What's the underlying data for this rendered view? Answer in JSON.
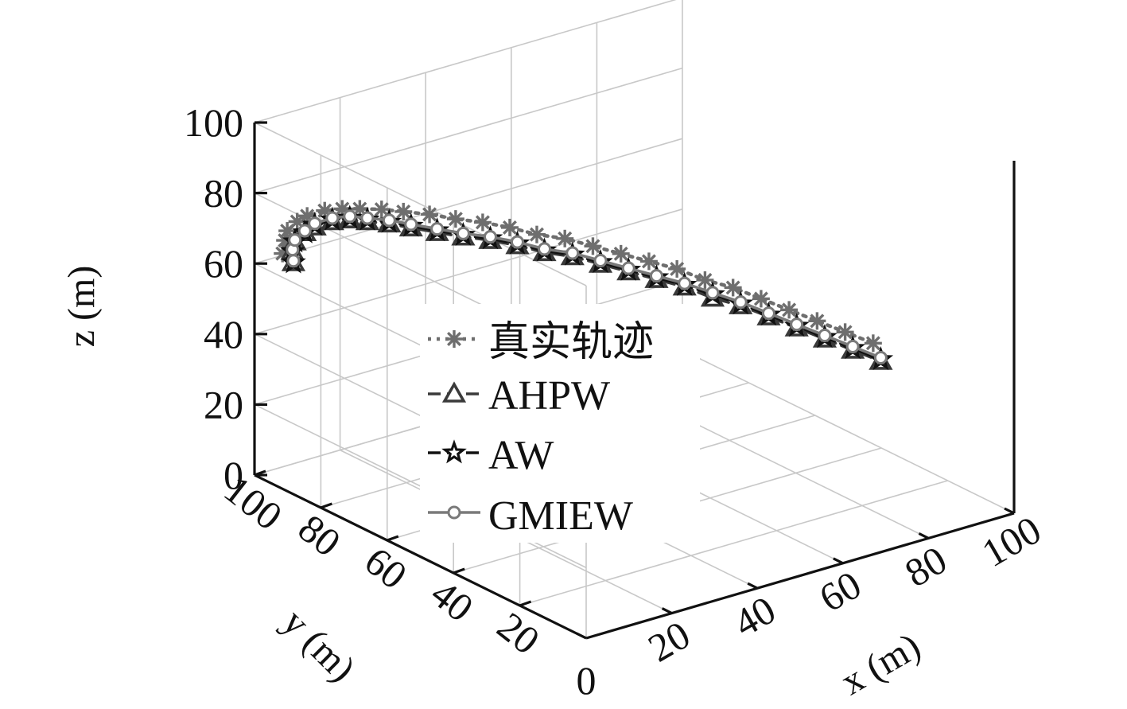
{
  "chart_data": {
    "type": "line3d",
    "view": "isometric-3d",
    "grid": true,
    "legend_position": "center",
    "xlabel": "x (m)",
    "ylabel": "y (m)",
    "zlabel": "z (m)",
    "xlim": [
      0,
      100
    ],
    "ylim": [
      0,
      100
    ],
    "zlim": [
      0,
      100
    ],
    "x_ticks": [
      "0",
      "20",
      "40",
      "60",
      "80",
      "100"
    ],
    "y_ticks": [
      "20",
      "40",
      "60",
      "80",
      "100"
    ],
    "z_ticks": [
      "0",
      "20",
      "40",
      "60",
      "80",
      "100"
    ],
    "series": [
      {
        "name": "真实轨迹",
        "color": "#6e6e6e",
        "line_style": "dotted",
        "marker": "asterisk",
        "points": [
          [
            5,
            98,
            62
          ],
          [
            4,
            96,
            67
          ],
          [
            3,
            94,
            71
          ],
          [
            3,
            91,
            75
          ],
          [
            3,
            88,
            78
          ],
          [
            4,
            84,
            81
          ],
          [
            5,
            80,
            83
          ],
          [
            6,
            76,
            84.5
          ],
          [
            8,
            72,
            85.5
          ],
          [
            10,
            68,
            86
          ],
          [
            13,
            64,
            86
          ],
          [
            16,
            60,
            85.5
          ],
          [
            20,
            57,
            84.5
          ],
          [
            24,
            54,
            83
          ],
          [
            28,
            51,
            81
          ],
          [
            33,
            49,
            79
          ],
          [
            38,
            47,
            76
          ],
          [
            43,
            45,
            73
          ],
          [
            48,
            43,
            70
          ],
          [
            53,
            41,
            67
          ],
          [
            58,
            39,
            63
          ],
          [
            63,
            37,
            60
          ],
          [
            68,
            35,
            56
          ],
          [
            73,
            33,
            52
          ],
          [
            78,
            31,
            48
          ],
          [
            83,
            29,
            44
          ],
          [
            88,
            27,
            40
          ]
        ]
      },
      {
        "name": "AHPW",
        "color": "#3a3a3a",
        "line_style": "dashed",
        "marker": "triangle",
        "points": [
          [
            6,
            96,
            60
          ],
          [
            5,
            95,
            64
          ],
          [
            4,
            93,
            68
          ],
          [
            4,
            90,
            72
          ],
          [
            4,
            87,
            75
          ],
          [
            5,
            83,
            78
          ],
          [
            6,
            79,
            80
          ],
          [
            7,
            75,
            81
          ],
          [
            9,
            71,
            81.5
          ],
          [
            11,
            67,
            81.5
          ],
          [
            14,
            63,
            81
          ],
          [
            17,
            59,
            80.5
          ],
          [
            21,
            56,
            79.5
          ],
          [
            25,
            53,
            78
          ],
          [
            29,
            50,
            76
          ],
          [
            34,
            48,
            74
          ],
          [
            39,
            46,
            71
          ],
          [
            44,
            44,
            68
          ],
          [
            49,
            42,
            65
          ],
          [
            54,
            40,
            62
          ],
          [
            59,
            38,
            58
          ],
          [
            64,
            36,
            55
          ],
          [
            69,
            34,
            51
          ],
          [
            74,
            32,
            47
          ],
          [
            79,
            30,
            43
          ],
          [
            84,
            28,
            39
          ],
          [
            89,
            26,
            35
          ]
        ]
      },
      {
        "name": "AW",
        "color": "#111111",
        "line_style": "dashed",
        "marker": "pentagram",
        "points": [
          [
            6,
            96,
            60
          ],
          [
            5,
            95,
            64
          ],
          [
            4,
            93,
            68
          ],
          [
            4,
            90,
            72
          ],
          [
            4,
            87,
            75.5
          ],
          [
            5,
            83,
            78.5
          ],
          [
            6,
            79,
            80.5
          ],
          [
            7,
            75,
            81.5
          ],
          [
            9,
            71,
            82
          ],
          [
            11,
            67,
            82
          ],
          [
            14,
            63,
            81.5
          ],
          [
            17,
            59,
            81
          ],
          [
            21,
            56,
            80
          ],
          [
            25,
            53,
            78.5
          ],
          [
            29,
            50,
            76.5
          ],
          [
            34,
            48,
            74.5
          ],
          [
            39,
            46,
            71.5
          ],
          [
            44,
            44,
            68.5
          ],
          [
            49,
            42,
            65.5
          ],
          [
            54,
            40,
            62.5
          ],
          [
            59,
            38,
            59
          ],
          [
            64,
            36,
            55.5
          ],
          [
            69,
            34,
            51.5
          ],
          [
            74,
            32,
            47.5
          ],
          [
            79,
            30,
            43.5
          ],
          [
            84,
            28,
            39.5
          ],
          [
            89,
            26,
            35.5
          ]
        ]
      },
      {
        "name": "GMIEW",
        "color": "#7a7a7a",
        "line_style": "solid",
        "marker": "circle",
        "points": [
          [
            6,
            96,
            60.5
          ],
          [
            5,
            95,
            64.5
          ],
          [
            4,
            93,
            68.5
          ],
          [
            4,
            90,
            72.5
          ],
          [
            4,
            87,
            76
          ],
          [
            5,
            83,
            79
          ],
          [
            6,
            79,
            81
          ],
          [
            7,
            75,
            82
          ],
          [
            9,
            71,
            82.5
          ],
          [
            11,
            67,
            82.5
          ],
          [
            14,
            63,
            82
          ],
          [
            17,
            59,
            81.5
          ],
          [
            21,
            56,
            80.5
          ],
          [
            25,
            53,
            79
          ],
          [
            29,
            50,
            77
          ],
          [
            34,
            48,
            75
          ],
          [
            39,
            46,
            72
          ],
          [
            44,
            44,
            69
          ],
          [
            49,
            42,
            66
          ],
          [
            54,
            40,
            63
          ],
          [
            59,
            38,
            59.5
          ],
          [
            64,
            36,
            56
          ],
          [
            69,
            34,
            52
          ],
          [
            74,
            32,
            48
          ],
          [
            79,
            30,
            44
          ],
          [
            84,
            28,
            40
          ],
          [
            89,
            26,
            36
          ]
        ]
      }
    ]
  }
}
